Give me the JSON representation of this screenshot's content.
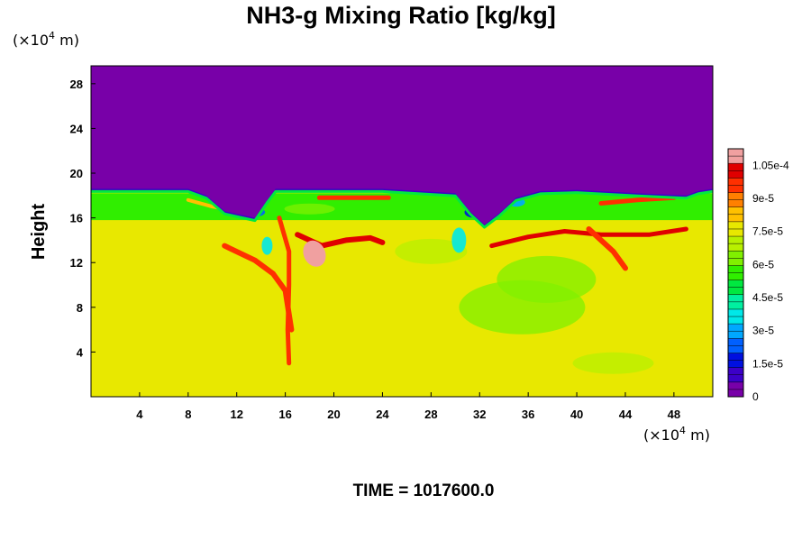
{
  "chart_data": {
    "type": "heatmap",
    "title": "NH3-g Mixing Ratio [kg/kg]",
    "ylabel": "Height",
    "x_unit": "(×10⁴ m)",
    "y_unit": "(×10⁴ m)",
    "x_unit_parts": {
      "pre": "(×10",
      "exp": "4",
      "post": " m)"
    },
    "y_unit_parts": {
      "pre": "(×10",
      "exp": "4",
      "post": " m)"
    },
    "xlim": [
      0,
      51.2
    ],
    "ylim": [
      0,
      29.6
    ],
    "x_ticks": [
      4,
      8,
      12,
      16,
      20,
      24,
      28,
      32,
      36,
      40,
      44,
      48
    ],
    "y_ticks": [
      4,
      8,
      12,
      16,
      20,
      24,
      28
    ],
    "colorbar": {
      "range": [
        0,
        0.0001125
      ],
      "tick_values": [
        0,
        1.5e-05,
        3e-05,
        4.5e-05,
        6e-05,
        7.5e-05,
        9e-05,
        0.000105
      ],
      "tick_labels": [
        "0",
        "1.5e-5",
        "3e-5",
        "4.5e-5",
        "6e-5",
        "7.5e-5",
        "9e-5",
        "1.05e-4"
      ],
      "colors": [
        "#7800a8",
        "#3c00c8",
        "#0010e0",
        "#0060ff",
        "#00a8ff",
        "#00e8e8",
        "#00f0a0",
        "#00e840",
        "#30ee00",
        "#80f000",
        "#b8f000",
        "#e8e800",
        "#ffc000",
        "#ff8000",
        "#ff3000",
        "#e00000",
        "#f0a0a0"
      ]
    },
    "field": {
      "upper_layer_top_y": 18.6,
      "upper_layer_value": 0,
      "background_value": 7.7e-05,
      "band_16_18_value": 5.5e-05
    },
    "time_label": "TIME = 1017600.0"
  }
}
